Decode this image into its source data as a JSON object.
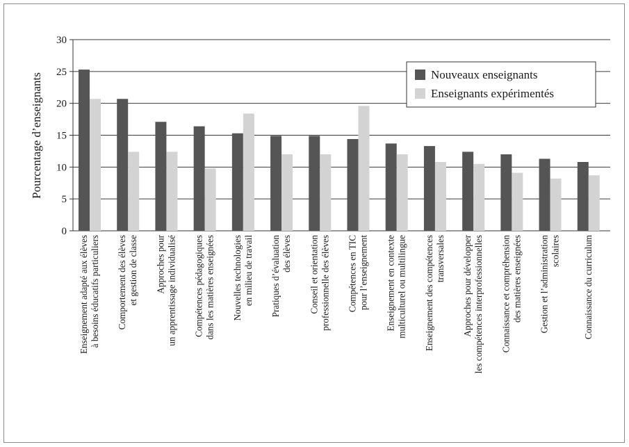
{
  "chart_data": {
    "type": "bar",
    "title": "",
    "xlabel": "",
    "ylabel": "Pourcentage d’enseignants",
    "ylim": [
      0,
      30
    ],
    "yticks": [
      0,
      5,
      10,
      15,
      20,
      25,
      30
    ],
    "grid": true,
    "legend_position": "top-right",
    "categories": [
      [
        "Enseignement adapté aux élèves",
        "à besoins éducatifs particuliers"
      ],
      [
        "Comportement des élèves",
        "et gestion de classe"
      ],
      [
        "Approches pour",
        "un apprentissage individualisé"
      ],
      [
        "Compétences pédagogiques",
        "dans les matières enseignées"
      ],
      [
        "Nouvelles technologies",
        "en milieu de travail"
      ],
      [
        "Pratiques d’évaluation",
        "des élèves"
      ],
      [
        "Conseil et orientation",
        "professionnelle des élèves"
      ],
      [
        "Compétences en TIC",
        "pour l’enseignement"
      ],
      [
        "Enseignement en contexte",
        "multiculturel ou multilingue"
      ],
      [
        "Enseignement des compétences",
        "transversales"
      ],
      [
        "Approches pour développer",
        "les compétences interprofessionnelles"
      ],
      [
        "Connaissance et compréhension",
        "des matières enseignées"
      ],
      [
        "Gestion et l’administration",
        "scolaires"
      ],
      [
        "Connaissance du curriculum"
      ]
    ],
    "series": [
      {
        "name": "Nouveaux enseignants",
        "color": "#555555",
        "values": [
          25.3,
          20.7,
          17.1,
          16.4,
          15.3,
          14.9,
          14.9,
          14.4,
          13.7,
          13.3,
          12.4,
          12.0,
          11.3,
          10.8
        ]
      },
      {
        "name": "Enseignants expérimentés",
        "color": "#d3d3d3",
        "values": [
          20.7,
          12.4,
          12.4,
          9.8,
          18.4,
          12.0,
          12.0,
          19.6,
          12.0,
          10.8,
          10.5,
          9.1,
          8.2,
          8.7
        ]
      }
    ]
  }
}
